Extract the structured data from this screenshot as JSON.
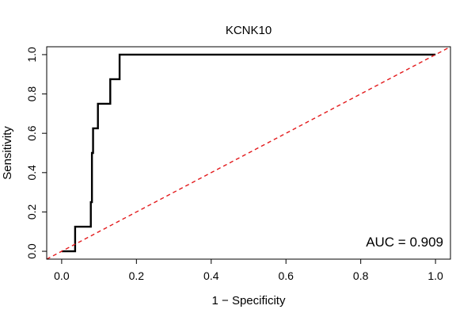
{
  "chart_data": {
    "type": "line",
    "title": "KCNK10",
    "xlabel": "1 − Specificity",
    "ylabel": "Sensitivity",
    "xlim": [
      -0.04,
      1.04
    ],
    "ylim": [
      -0.04,
      1.04
    ],
    "x_ticks": [
      "0.0",
      "0.2",
      "0.4",
      "0.6",
      "0.8",
      "1.0"
    ],
    "y_ticks": [
      "0.0",
      "0.2",
      "0.4",
      "0.6",
      "0.8",
      "1.0"
    ],
    "annotation": "AUC = 0.909",
    "series": [
      {
        "style": "solid",
        "color": "#000000",
        "x": [
          0.0,
          0.036,
          0.036,
          0.078,
          0.078,
          0.081,
          0.081,
          0.084,
          0.084,
          0.097,
          0.097,
          0.13,
          0.13,
          0.155,
          0.155,
          1.0
        ],
        "y": [
          0.0,
          0.0,
          0.125,
          0.125,
          0.25,
          0.25,
          0.5,
          0.5,
          0.625,
          0.625,
          0.75,
          0.75,
          0.875,
          0.875,
          1.0,
          1.0
        ]
      },
      {
        "style": "dashed",
        "color": "#e31a1c",
        "x": [
          -0.04,
          1.04
        ],
        "y": [
          -0.04,
          1.04
        ]
      }
    ],
    "grid": false,
    "legend": "none"
  }
}
